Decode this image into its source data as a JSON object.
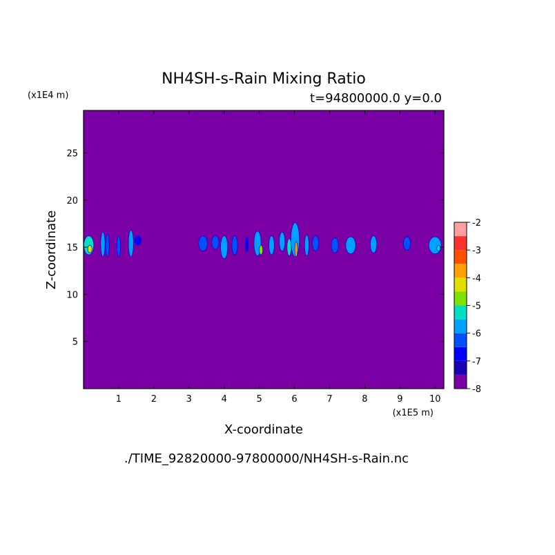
{
  "chart_data": {
    "type": "heatmap",
    "title": "NH4SH-s-Rain Mixing Ratio",
    "subtitle": "t=94800000.0 y=0.0",
    "xlabel": "X-coordinate",
    "ylabel": "Z-coordinate",
    "x_unit": "(x1E5 m)",
    "y_unit": "(x1E4 m)",
    "file_label": "./TIME_92820000-97800000/NH4SH-s-Rain.nc",
    "xlim": [
      0,
      10.25
    ],
    "ylim": [
      0,
      29.5
    ],
    "x_ticks": [
      1,
      2,
      3,
      4,
      5,
      6,
      7,
      8,
      9,
      10
    ],
    "y_ticks": [
      5,
      10,
      15,
      20,
      25
    ],
    "background_color": "#7a00a6",
    "colorbar": {
      "range": [
        -8,
        -2
      ],
      "tick_labels": [
        "-2",
        "-3",
        "-4",
        "-5",
        "-6",
        "-7",
        "-8"
      ],
      "levels": [
        {
          "from": -8.0,
          "to": -7.5,
          "color": "#7a00a6"
        },
        {
          "from": -7.5,
          "to": -7.0,
          "color": "#1a00b4"
        },
        {
          "from": -7.0,
          "to": -6.5,
          "color": "#0000ff"
        },
        {
          "from": -6.5,
          "to": -6.0,
          "color": "#0050ff"
        },
        {
          "from": -6.0,
          "to": -5.5,
          "color": "#00a0ff"
        },
        {
          "from": -5.5,
          "to": -5.0,
          "color": "#00e0c0"
        },
        {
          "from": -5.0,
          "to": -4.5,
          "color": "#80e000"
        },
        {
          "from": -4.5,
          "to": -4.0,
          "color": "#e0e000"
        },
        {
          "from": -4.0,
          "to": -3.5,
          "color": "#ffa000"
        },
        {
          "from": -3.5,
          "to": -3.0,
          "color": "#ff5000"
        },
        {
          "from": -3.0,
          "to": -2.5,
          "color": "#ff3030"
        },
        {
          "from": -2.5,
          "to": -2.0,
          "color": "#ffa0a0"
        }
      ]
    },
    "cells": [
      {
        "x": 0.15,
        "z": 15.2,
        "w": 0.28,
        "h": 2.0,
        "level": -5.5
      },
      {
        "x": 0.18,
        "z": 14.8,
        "w": 0.12,
        "h": 0.8,
        "level": -4.5
      },
      {
        "x": 0.55,
        "z": 15.3,
        "w": 0.12,
        "h": 2.6,
        "level": -6.0
      },
      {
        "x": 0.68,
        "z": 15.2,
        "w": 0.1,
        "h": 2.4,
        "level": -6.5
      },
      {
        "x": 1.0,
        "z": 15.1,
        "w": 0.1,
        "h": 2.2,
        "level": -6.5
      },
      {
        "x": 1.35,
        "z": 15.4,
        "w": 0.14,
        "h": 2.8,
        "level": -6.0
      },
      {
        "x": 1.55,
        "z": 15.7,
        "w": 0.18,
        "h": 1.0,
        "level": -7.0
      },
      {
        "x": 3.4,
        "z": 15.4,
        "w": 0.25,
        "h": 1.6,
        "level": -6.5
      },
      {
        "x": 3.75,
        "z": 15.5,
        "w": 0.2,
        "h": 1.4,
        "level": -6.5
      },
      {
        "x": 4.0,
        "z": 15.0,
        "w": 0.2,
        "h": 2.4,
        "level": -6.0
      },
      {
        "x": 4.3,
        "z": 15.2,
        "w": 0.16,
        "h": 2.0,
        "level": -6.5
      },
      {
        "x": 4.65,
        "z": 15.3,
        "w": 0.08,
        "h": 1.6,
        "level": -7.0
      },
      {
        "x": 4.95,
        "z": 15.4,
        "w": 0.2,
        "h": 2.6,
        "level": -6.0
      },
      {
        "x": 5.05,
        "z": 14.7,
        "w": 0.1,
        "h": 1.0,
        "level": -5.0
      },
      {
        "x": 5.35,
        "z": 15.2,
        "w": 0.15,
        "h": 2.0,
        "level": -6.0
      },
      {
        "x": 5.65,
        "z": 15.6,
        "w": 0.16,
        "h": 2.0,
        "level": -6.0
      },
      {
        "x": 5.85,
        "z": 15.0,
        "w": 0.12,
        "h": 1.8,
        "level": -5.5
      },
      {
        "x": 6.02,
        "z": 15.8,
        "w": 0.24,
        "h": 3.6,
        "level": -6.0
      },
      {
        "x": 6.05,
        "z": 14.8,
        "w": 0.08,
        "h": 1.6,
        "level": -4.0
      },
      {
        "x": 6.35,
        "z": 15.2,
        "w": 0.12,
        "h": 2.2,
        "level": -6.0
      },
      {
        "x": 6.6,
        "z": 15.4,
        "w": 0.18,
        "h": 1.6,
        "level": -6.5
      },
      {
        "x": 7.15,
        "z": 15.2,
        "w": 0.2,
        "h": 1.6,
        "level": -6.5
      },
      {
        "x": 7.6,
        "z": 15.2,
        "w": 0.28,
        "h": 1.8,
        "level": -6.0
      },
      {
        "x": 8.25,
        "z": 15.3,
        "w": 0.18,
        "h": 1.8,
        "level": -6.0
      },
      {
        "x": 9.2,
        "z": 15.4,
        "w": 0.2,
        "h": 1.4,
        "level": -6.5
      },
      {
        "x": 10.0,
        "z": 15.2,
        "w": 0.35,
        "h": 1.8,
        "level": -6.0
      },
      {
        "x": 10.1,
        "z": 14.9,
        "w": 0.1,
        "h": 0.6,
        "level": -5.5
      }
    ]
  }
}
